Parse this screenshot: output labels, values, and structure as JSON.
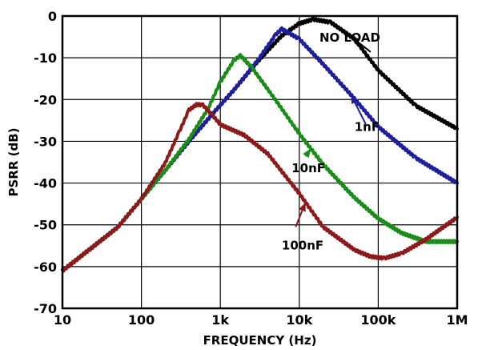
{
  "chart_data": {
    "type": "line",
    "title": "",
    "xlabel": "FREQUENCY (Hz)",
    "ylabel": "PSRR (dB)",
    "x_scale": "log",
    "xlim": [
      10,
      1000000
    ],
    "ylim": [
      -70,
      0
    ],
    "x_ticks": [
      10,
      100,
      1000,
      10000,
      100000,
      1000000
    ],
    "x_tick_labels": [
      "10",
      "100",
      "1k",
      "10k",
      "100k",
      "1M"
    ],
    "y_ticks": [
      0,
      -10,
      -20,
      -30,
      -40,
      -50,
      -60,
      -70
    ],
    "y_tick_labels": [
      "0",
      "-10",
      "-20",
      "-30",
      "-40",
      "-50",
      "-60",
      "-70"
    ],
    "grid": true,
    "series": [
      {
        "name": "NO LOAD",
        "color": "#000000",
        "x": [
          10,
          50,
          100,
          200,
          400,
          800,
          1500,
          3000,
          6000,
          10000,
          15000,
          25000,
          50000,
          100000,
          300000,
          1000000
        ],
        "y": [
          -61,
          -50.6,
          -43.8,
          -37,
          -30,
          -23.4,
          -17.6,
          -10.8,
          -4.7,
          -1.8,
          -0.8,
          -1.5,
          -5.5,
          -13,
          -21.5,
          -27
        ]
      },
      {
        "name": "1nF",
        "color": "#1f1f9e",
        "x": [
          10,
          50,
          100,
          200,
          400,
          800,
          1500,
          3000,
          5000,
          6000,
          10000,
          20000,
          50000,
          100000,
          300000,
          1000000
        ],
        "y": [
          -61,
          -50.6,
          -43.8,
          -37,
          -30,
          -23.4,
          -17.6,
          -10.5,
          -4.5,
          -3.1,
          -5.5,
          -11.5,
          -19.8,
          -26.5,
          -34,
          -40
        ]
      },
      {
        "name": "10nF",
        "color": "#1a8c1a",
        "x": [
          10,
          50,
          100,
          200,
          400,
          700,
          1000,
          1500,
          1800,
          2500,
          5000,
          10000,
          20000,
          50000,
          100000,
          200000,
          400000,
          1000000
        ],
        "y": [
          -61,
          -50.6,
          -43.8,
          -37,
          -29.5,
          -22.2,
          -15.8,
          -10.5,
          -9.5,
          -12.3,
          -20.1,
          -28.2,
          -35.5,
          -43.5,
          -48.5,
          -52,
          -54,
          -54
        ]
      },
      {
        "name": "100nF",
        "color": "#8b1a1a",
        "x": [
          10,
          50,
          100,
          200,
          300,
          400,
          500,
          600,
          800,
          1000,
          2000,
          4000,
          10000,
          20000,
          50000,
          80000,
          120000,
          200000,
          400000,
          1000000
        ],
        "y": [
          -61,
          -50.6,
          -43.8,
          -35.2,
          -27.8,
          -22.5,
          -21.2,
          -21.3,
          -23.8,
          -26,
          -28.5,
          -33,
          -42.5,
          -50.5,
          -56,
          -57.6,
          -58,
          -56.8,
          -53.5,
          -48.2
        ]
      }
    ],
    "annotations": [
      {
        "text": "NO LOAD",
        "x": 18000,
        "y": -5
      },
      {
        "text": "1nF",
        "x": 50000,
        "y": -26.4
      },
      {
        "text": "10nF",
        "x": 8000,
        "y": -36.2
      },
      {
        "text": "100nF",
        "x": 6000,
        "y": -54.8
      }
    ]
  }
}
